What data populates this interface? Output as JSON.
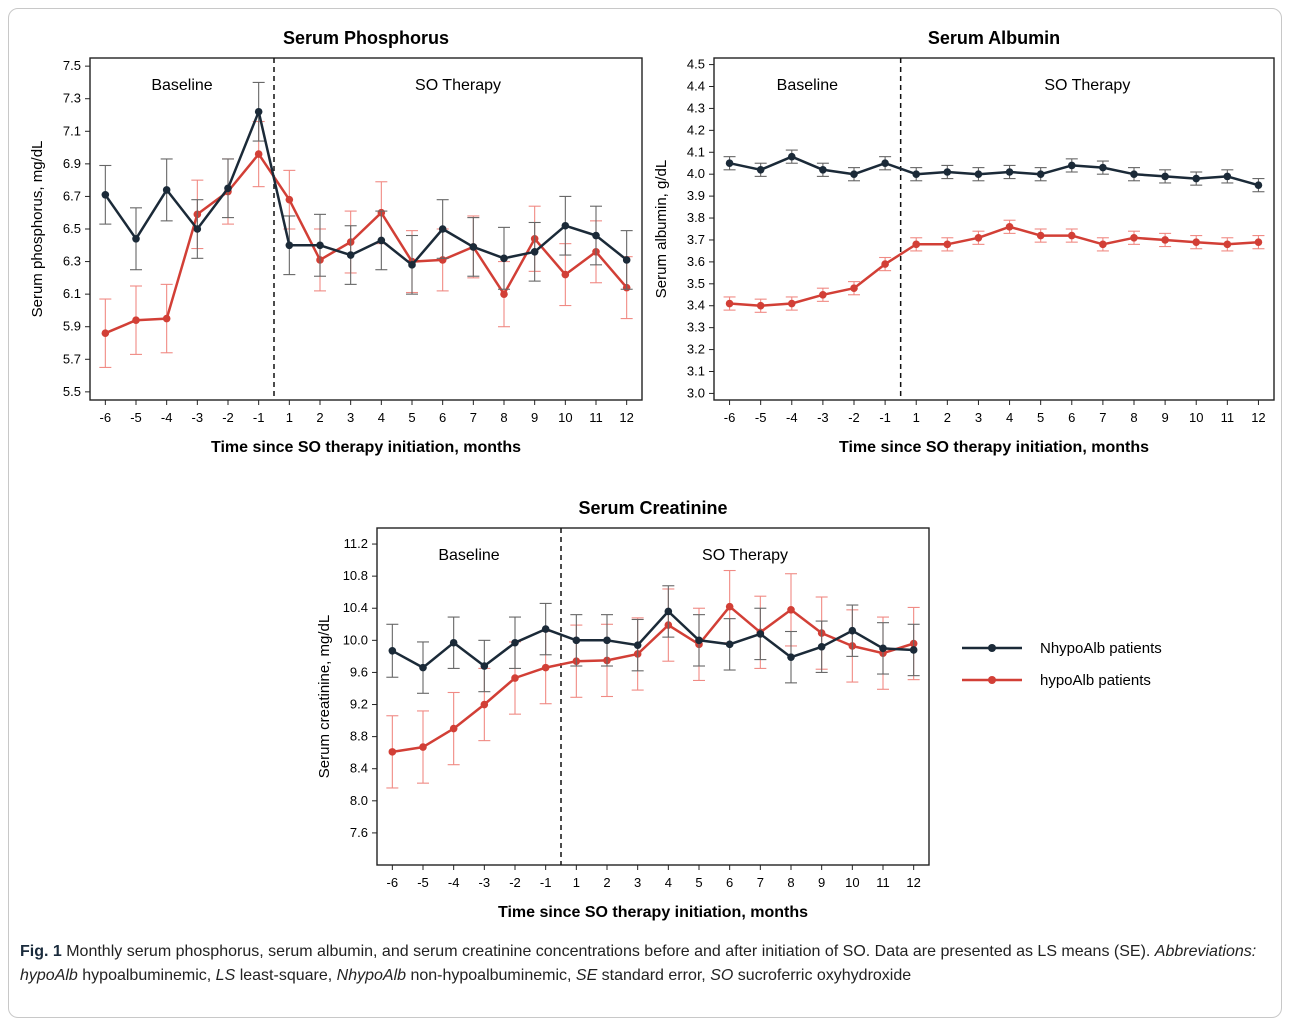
{
  "caption": {
    "fig_label": "Fig. 1",
    "text_intro": " Monthly serum phosphorus, serum albumin, and serum creatinine concentrations before and after initiation of SO. Data are presented as LS means (SE). ",
    "abbr_heading": "Abbreviations:",
    "abbr_items": [
      {
        "term": "hypoAlb",
        "def": " hypoalbuminemic, "
      },
      {
        "term": "LS",
        "def": " least-square, "
      },
      {
        "term": "NhypoAlb",
        "def": " non-hypoalbuminemic, "
      },
      {
        "term": "SE",
        "def": " standard error, "
      },
      {
        "term": "SO",
        "def": " sucroferric oxyhydroxide"
      }
    ]
  },
  "legend": {
    "items": [
      {
        "label": "NhypoAlb patients",
        "color": "#1b2a38"
      },
      {
        "label": "hypoAlb patients",
        "color": "#d23f36"
      }
    ]
  },
  "chart_data": [
    {
      "type": "line",
      "title": "Serum Phosphorus",
      "xlabel": "Time since SO therapy initiation, months",
      "ylabel": "Serum phosphorus, mg/dL",
      "x": [
        -6,
        -5,
        -4,
        -3,
        -2,
        -1,
        1,
        2,
        3,
        4,
        5,
        6,
        7,
        8,
        9,
        10,
        11,
        12
      ],
      "ylim": [
        5.45,
        7.55
      ],
      "yticks": [
        "5.5",
        "5.7",
        "5.9",
        "6.1",
        "6.3",
        "6.5",
        "6.7",
        "6.9",
        "7.1",
        "7.3",
        "7.5"
      ],
      "annotations": [
        "Baseline",
        "SO Therapy"
      ],
      "series": [
        {
          "name": "NhypoAlb patients",
          "color": "#1b2a38",
          "errcolor": "#666666",
          "values": [
            6.71,
            6.44,
            6.74,
            6.5,
            6.75,
            7.22,
            6.4,
            6.4,
            6.34,
            6.43,
            6.28,
            6.5,
            6.39,
            6.32,
            6.36,
            6.52,
            6.46,
            6.31
          ],
          "se": [
            0.18,
            0.19,
            0.19,
            0.18,
            0.18,
            0.18,
            0.18,
            0.19,
            0.18,
            0.18,
            0.18,
            0.18,
            0.18,
            0.19,
            0.18,
            0.18,
            0.18,
            0.18
          ]
        },
        {
          "name": "hypoAlb patients",
          "color": "#d23f36",
          "errcolor": "#f08a84",
          "values": [
            5.86,
            5.94,
            5.95,
            6.59,
            6.73,
            6.96,
            6.68,
            6.31,
            6.42,
            6.6,
            6.3,
            6.31,
            6.39,
            6.1,
            6.44,
            6.22,
            6.36,
            6.14
          ],
          "se": [
            0.21,
            0.21,
            0.21,
            0.21,
            0.2,
            0.2,
            0.18,
            0.19,
            0.19,
            0.19,
            0.19,
            0.19,
            0.19,
            0.2,
            0.2,
            0.19,
            0.19,
            0.19
          ]
        }
      ]
    },
    {
      "type": "line",
      "title": "Serum Albumin",
      "xlabel": "Time since SO therapy initiation, months",
      "ylabel": "Serum albumin, g/dL",
      "x": [
        -6,
        -5,
        -4,
        -3,
        -2,
        -1,
        1,
        2,
        3,
        4,
        5,
        6,
        7,
        8,
        9,
        10,
        11,
        12
      ],
      "ylim": [
        2.97,
        4.53
      ],
      "yticks": [
        "3.0",
        "3.1",
        "3.2",
        "3.3",
        "3.4",
        "3.5",
        "3.6",
        "3.7",
        "3.8",
        "3.9",
        "4.0",
        "4.1",
        "4.2",
        "4.3",
        "4.4",
        "4.5"
      ],
      "annotations": [
        "Baseline",
        "SO Therapy"
      ],
      "series": [
        {
          "name": "NhypoAlb patients",
          "color": "#1b2a38",
          "errcolor": "#666666",
          "values": [
            4.05,
            4.02,
            4.08,
            4.02,
            4.0,
            4.05,
            4.0,
            4.01,
            4.0,
            4.01,
            4.0,
            4.04,
            4.03,
            4.0,
            3.99,
            3.98,
            3.99,
            3.95
          ],
          "se": [
            0.03,
            0.03,
            0.03,
            0.03,
            0.03,
            0.03,
            0.03,
            0.03,
            0.03,
            0.03,
            0.03,
            0.03,
            0.03,
            0.03,
            0.03,
            0.03,
            0.03,
            0.03
          ]
        },
        {
          "name": "hypoAlb patients",
          "color": "#d23f36",
          "errcolor": "#f08a84",
          "values": [
            3.41,
            3.4,
            3.41,
            3.45,
            3.48,
            3.59,
            3.68,
            3.68,
            3.71,
            3.76,
            3.72,
            3.72,
            3.68,
            3.71,
            3.7,
            3.69,
            3.68,
            3.69
          ],
          "se": [
            0.03,
            0.03,
            0.03,
            0.03,
            0.03,
            0.03,
            0.03,
            0.03,
            0.03,
            0.03,
            0.03,
            0.03,
            0.03,
            0.03,
            0.03,
            0.03,
            0.03,
            0.03
          ]
        }
      ]
    },
    {
      "type": "line",
      "title": "Serum Creatinine",
      "xlabel": "Time since SO therapy initiation, months",
      "ylabel": "Serum creatinine, mg/dL",
      "x": [
        -6,
        -5,
        -4,
        -3,
        -2,
        -1,
        1,
        2,
        3,
        4,
        5,
        6,
        7,
        8,
        9,
        10,
        11,
        12
      ],
      "ylim": [
        7.2,
        11.4
      ],
      "yticks": [
        "7.6",
        "8.0",
        "8.4",
        "8.8",
        "9.2",
        "9.6",
        "10.0",
        "10.4",
        "10.8",
        "11.2"
      ],
      "annotations": [
        "Baseline",
        "SO Therapy"
      ],
      "series": [
        {
          "name": "NhypoAlb patients",
          "color": "#1b2a38",
          "errcolor": "#666666",
          "values": [
            9.87,
            9.66,
            9.97,
            9.68,
            9.97,
            10.14,
            10.0,
            10.0,
            9.94,
            10.36,
            10.0,
            9.95,
            10.08,
            9.79,
            9.92,
            10.12,
            9.9,
            9.88
          ],
          "se": [
            0.33,
            0.32,
            0.32,
            0.32,
            0.32,
            0.32,
            0.32,
            0.32,
            0.32,
            0.32,
            0.32,
            0.32,
            0.32,
            0.32,
            0.32,
            0.32,
            0.32,
            0.32
          ]
        },
        {
          "name": "hypoAlb patients",
          "color": "#d23f36",
          "errcolor": "#f08a84",
          "values": [
            8.61,
            8.67,
            8.9,
            9.2,
            9.53,
            9.66,
            9.74,
            9.75,
            9.83,
            10.19,
            9.95,
            10.42,
            10.1,
            10.38,
            10.09,
            9.93,
            9.84,
            9.96
          ],
          "se": [
            0.45,
            0.45,
            0.45,
            0.45,
            0.45,
            0.45,
            0.45,
            0.45,
            0.45,
            0.45,
            0.45,
            0.45,
            0.45,
            0.45,
            0.45,
            0.45,
            0.45,
            0.45
          ]
        }
      ]
    }
  ]
}
